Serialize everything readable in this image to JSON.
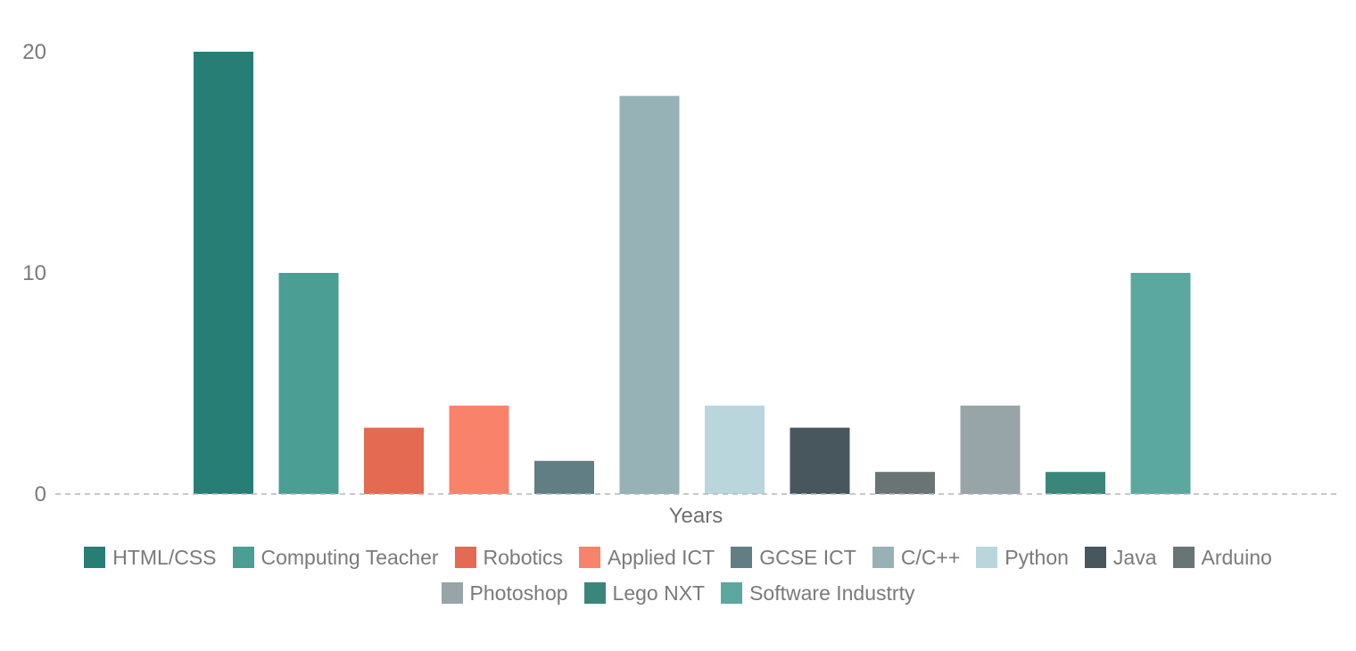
{
  "chart_data": {
    "type": "bar",
    "xlabel": "Years",
    "ylabel": "",
    "ylim": [
      0,
      20
    ],
    "yticks": [
      0,
      10,
      20
    ],
    "grid": false,
    "legend_position": "bottom",
    "series": [
      {
        "name": "HTML/CSS",
        "value": 20,
        "color": "#277e74"
      },
      {
        "name": "Computing Teacher",
        "value": 10,
        "color": "#4a9e94"
      },
      {
        "name": "Robotics",
        "value": 3,
        "color": "#e46a52"
      },
      {
        "name": "Applied ICT",
        "value": 4,
        "color": "#f8836a"
      },
      {
        "name": "GCSE ICT",
        "value": 1.5,
        "color": "#627e85"
      },
      {
        "name": "C/C++",
        "value": 18,
        "color": "#96b2b7"
      },
      {
        "name": "Python",
        "value": 4,
        "color": "#b9d6dc"
      },
      {
        "name": "Java",
        "value": 3,
        "color": "#48575e"
      },
      {
        "name": "Arduino",
        "value": 1,
        "color": "#687574"
      },
      {
        "name": "Photoshop",
        "value": 4,
        "color": "#97a4a8"
      },
      {
        "name": "Lego NXT",
        "value": 1,
        "color": "#3a867b"
      },
      {
        "name": "Software Industrty",
        "value": 10,
        "color": "#5ba8a0"
      }
    ]
  }
}
